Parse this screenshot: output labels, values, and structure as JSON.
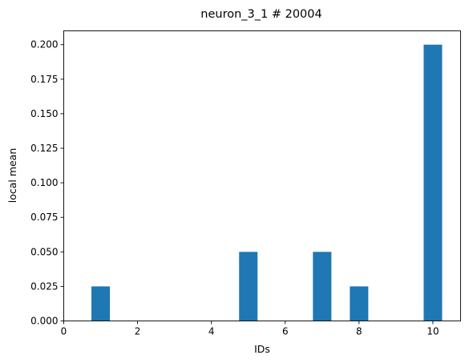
{
  "chart_data": {
    "type": "bar",
    "title": "neuron_3_1 # 20004",
    "xlabel": "IDs",
    "ylabel": "local mean",
    "x": [
      1,
      5,
      7,
      8,
      10
    ],
    "values": [
      0.025,
      0.05,
      0.05,
      0.025,
      0.2
    ],
    "bar_width": 0.5,
    "xlim": [
      0,
      10.75
    ],
    "ylim": [
      0,
      0.21
    ],
    "xticks": [
      0,
      2,
      4,
      6,
      8,
      10
    ],
    "xtick_labels": [
      "0",
      "2",
      "4",
      "6",
      "8",
      "10"
    ],
    "yticks": [
      0,
      0.025,
      0.05,
      0.075,
      0.1,
      0.125,
      0.15,
      0.175,
      0.2
    ],
    "ytick_labels": [
      "0.000",
      "0.025",
      "0.050",
      "0.075",
      "0.100",
      "0.125",
      "0.150",
      "0.175",
      "0.200"
    ],
    "bar_color": "#1f77b4",
    "grid": false,
    "legend": "none"
  }
}
